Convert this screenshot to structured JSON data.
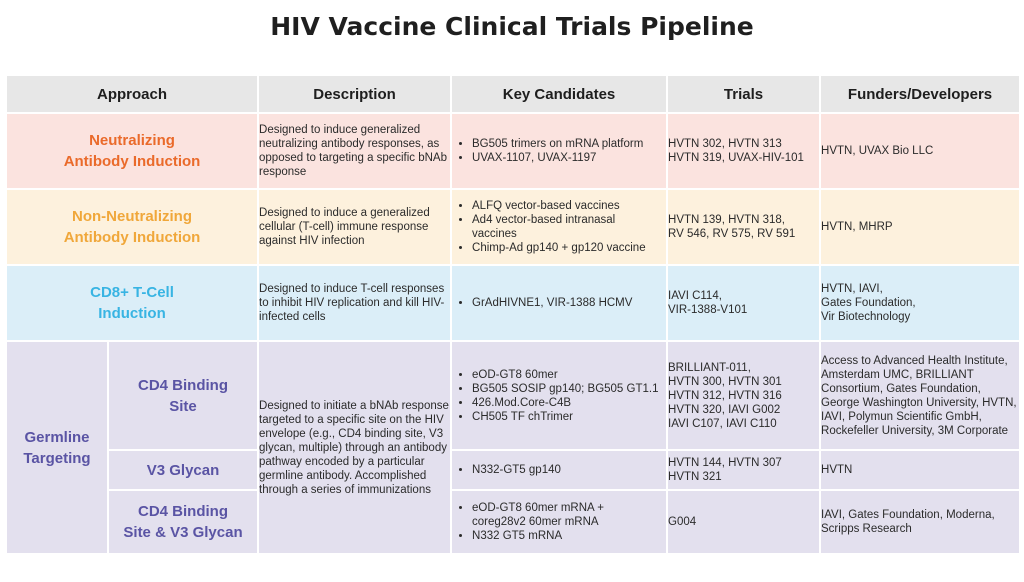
{
  "title": "HIV Vaccine Clinical Trials Pipeline",
  "headers": {
    "approach": "Approach",
    "description": "Description",
    "candidates": "Key Candidates",
    "trials": "Trials",
    "funders": "Funders/Developers"
  },
  "rows": [
    {
      "approach_line1": "Neutralizing",
      "approach_line2": "Antibody Induction",
      "description": "Designed to induce generalized neutralizing antibody responses, as opposed to targeting a specific bNAb response",
      "candidates": [
        "BG505 trimers on mRNA platform",
        "UVAX-1107, UVAX-1197"
      ],
      "trials": "HVTN 302, HVTN 313\nHVTN 319, UVAX-HIV-101",
      "funders": "HVTN, UVAX Bio LLC"
    },
    {
      "approach_line1": "Non-Neutralizing",
      "approach_line2": "Antibody Induction",
      "description": "Designed to induce a generalized cellular (T-cell) immune response against HIV infection",
      "candidates": [
        "ALFQ vector-based vaccines",
        "Ad4 vector-based intranasal vaccines",
        "Chimp-Ad gp140 + gp120 vaccine"
      ],
      "trials": "HVTN 139, HVTN 318,\nRV 546, RV 575, RV 591",
      "funders": "HVTN, MHRP"
    },
    {
      "approach_line1": "CD8+ T-Cell",
      "approach_line2": "Induction",
      "description": "Designed to induce T-cell responses to inhibit HIV replication and kill HIV-infected cells",
      "candidates": [
        "GrAdHIVNE1, VIR-1388 HCMV"
      ],
      "trials": "IAVI C114,\nVIR-1388-V101",
      "funders": "HVTN, IAVI,\nGates Foundation,\nVir Biotechnology"
    }
  ],
  "germline": {
    "approach_line1": "Germline",
    "approach_line2": "Targeting",
    "description": "Designed to initiate a bNAb response targeted to a specific site on the HIV envelope (e.g., CD4 binding site, V3 glycan, multiple) through an antibody pathway encoded by a particular germline antibody. Accomplished through a series of immunizations",
    "subrows": [
      {
        "name_line1": "CD4 Binding",
        "name_line2": "Site",
        "candidates": [
          "eOD-GT8 60mer",
          "BG505 SOSIP gp140; BG505 GT1.1",
          "426.Mod.Core-C4B",
          "CH505 TF chTrimer"
        ],
        "trials": "BRILLIANT-011,\nHVTN 300, HVTN 301\nHVTN 312, HVTN 316\nHVTN 320, IAVI G002\nIAVI C107, IAVI C110",
        "funders": "Access to Advanced Health Institute, Amsterdam UMC, BRILLIANT Consortium, Gates Foundation, George Washington University, HVTN, IAVI, Polymun Scientific GmbH, Rockefeller University, 3M Corporate"
      },
      {
        "name_line1": "V3 Glycan",
        "name_line2": "",
        "candidates": [
          "N332-GT5 gp140"
        ],
        "trials": "HVTN 144, HVTN 307\nHVTN 321",
        "funders": "HVTN"
      },
      {
        "name_line1": "CD4 Binding",
        "name_line2": "Site & V3 Glycan",
        "candidates": [
          "eOD-GT8 60mer mRNA + coreg28v2 60mer mRNA",
          "N332 GT5 mRNA"
        ],
        "trials": "G004",
        "funders": "IAVI, Gates Foundation, Moderna, Scripps Research"
      }
    ]
  },
  "colors": {
    "header_bg": "#e7e7e7",
    "neutralizing": "#ea6a2a",
    "non_neutralizing": "#f0a73a",
    "cd8": "#38b4e3",
    "germline": "#5a54a4"
  }
}
